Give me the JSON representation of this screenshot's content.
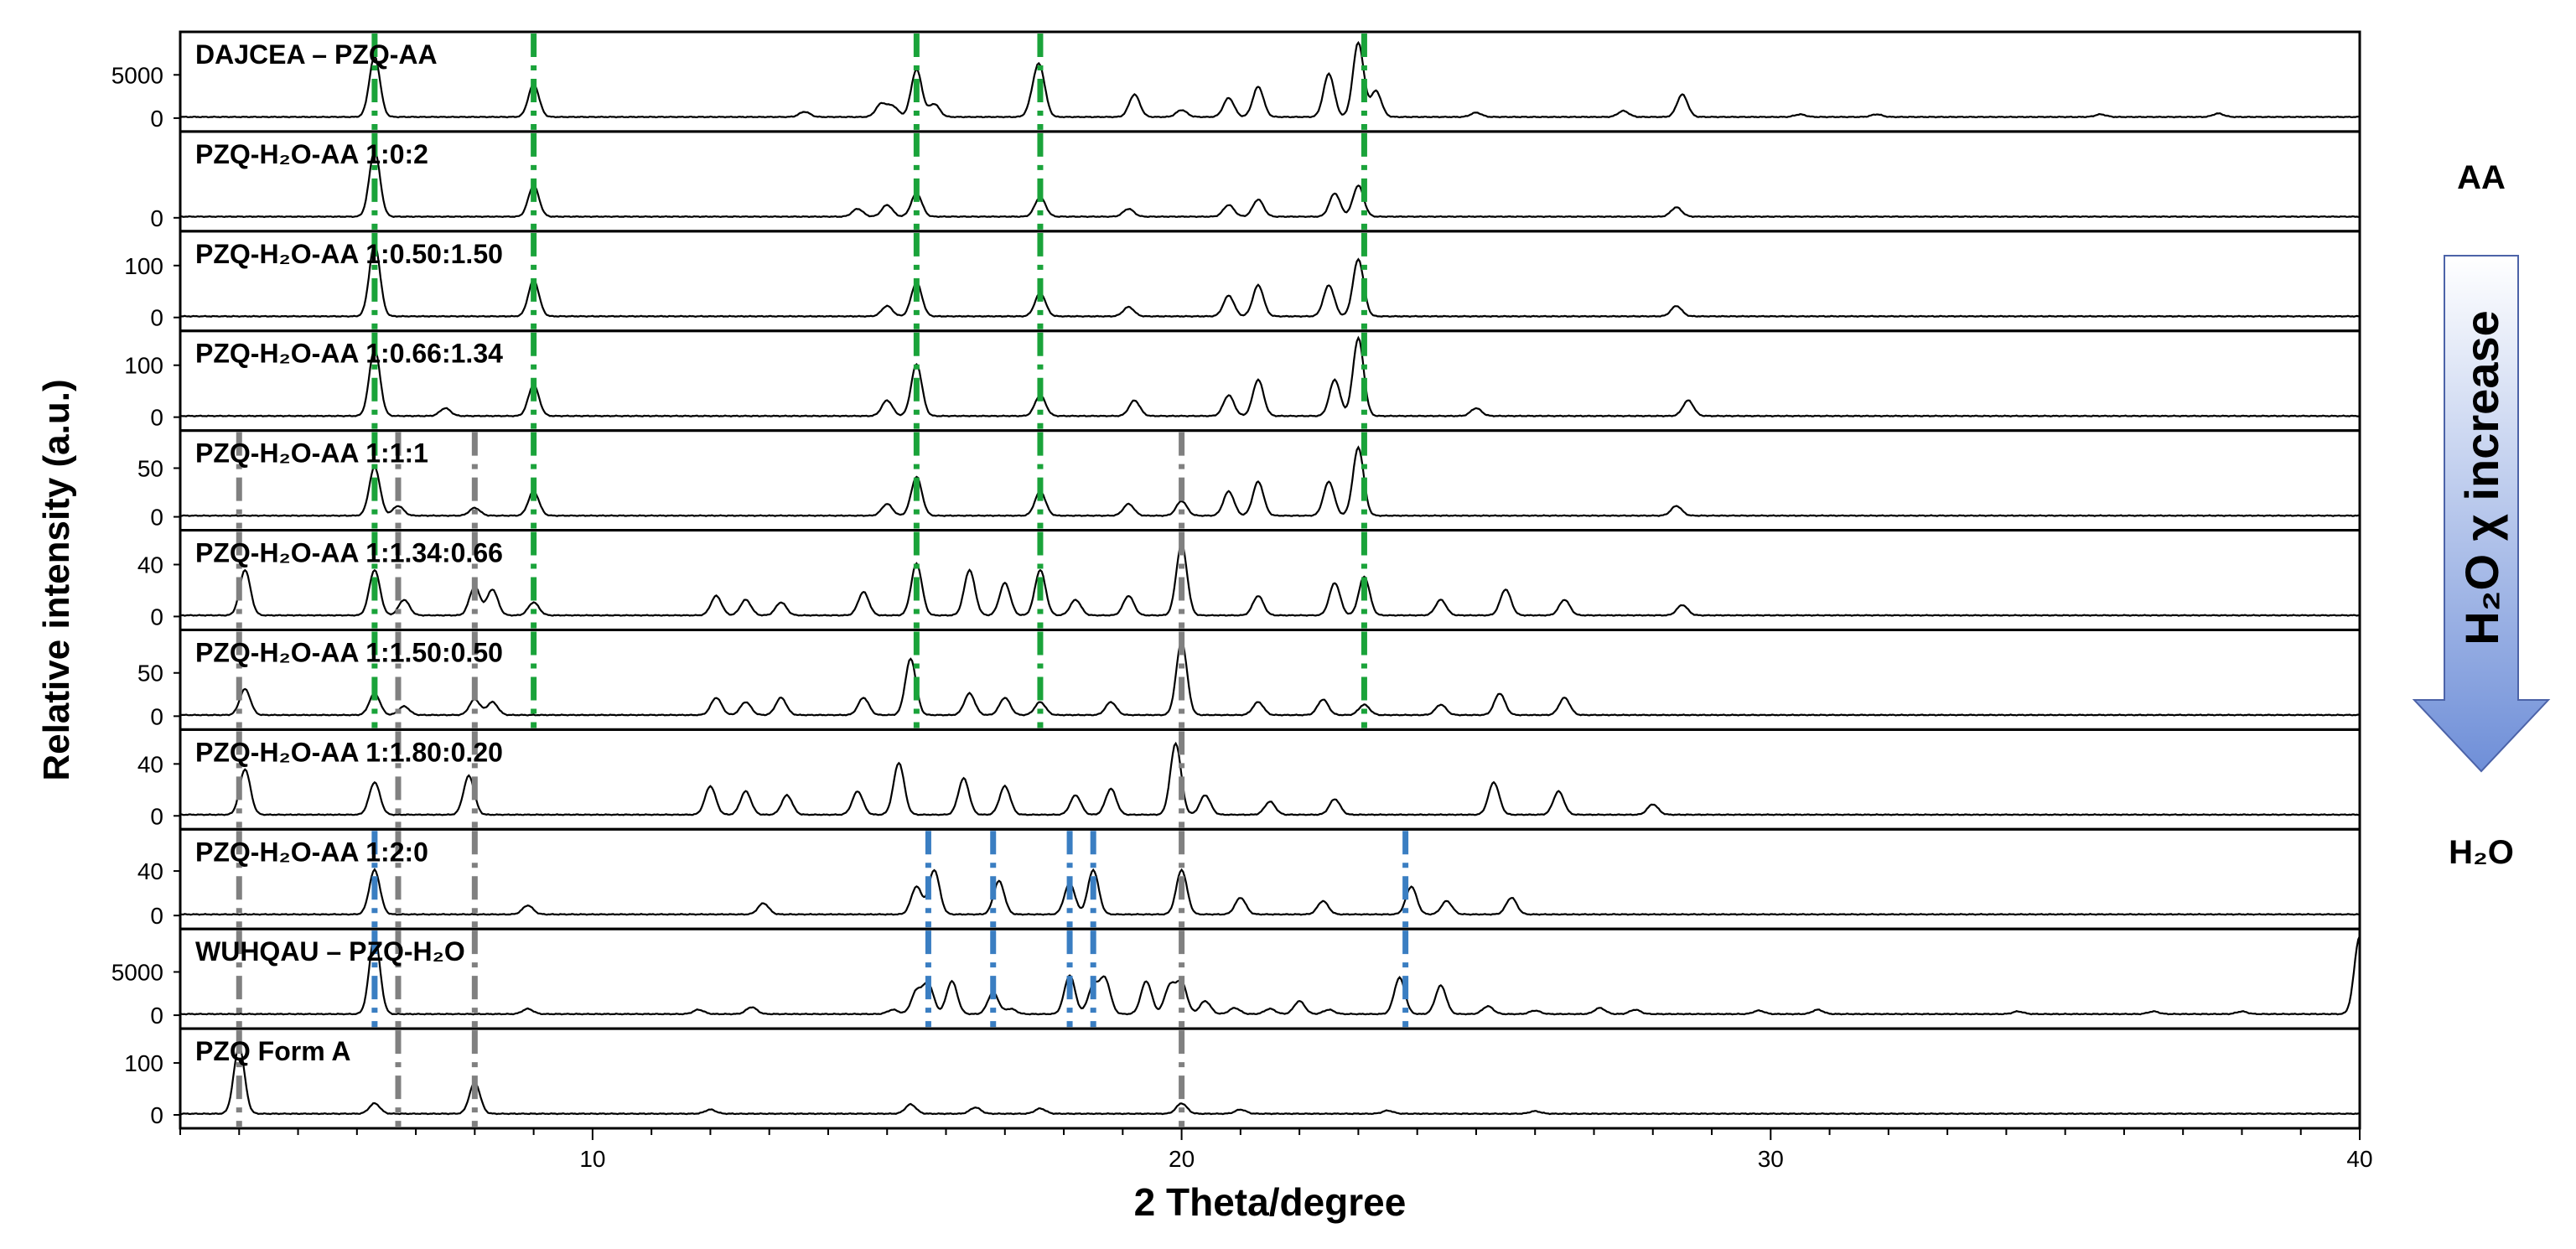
{
  "chart_data": {
    "type": "line",
    "ylabel": "Relative intensity (a.u.)",
    "xlabel": "2 Theta/degree",
    "xlim": [
      3,
      40
    ],
    "xticks": [
      10,
      20,
      30,
      40
    ],
    "side_labels": {
      "top": "AA",
      "bottom": "H₂O",
      "arrow": "H₂O χ increase"
    },
    "colors": {
      "AA_markers": "#1aa33a",
      "H2O_markers": "#3a7ec2",
      "FormA_markers": "#808080",
      "arrow_top": "#ffffff",
      "arrow_bottom": "#6f8fd8"
    },
    "marker_positions": {
      "green": [
        6.3,
        9.0,
        15.5,
        17.6,
        23.1
      ],
      "blue": [
        6.3,
        15.7,
        16.8,
        18.1,
        18.5,
        23.8
      ],
      "grey": [
        4.0,
        6.7,
        8.0,
        20.0
      ]
    },
    "panels": [
      {
        "label": "DAJCEA – PZQ-AA",
        "yticks": [
          "5000",
          "0"
        ],
        "max": 9000,
        "peaks": [
          [
            6.3,
            7000
          ],
          [
            9.0,
            3800
          ],
          [
            13.6,
            600
          ],
          [
            14.9,
            1500
          ],
          [
            15.1,
            1200
          ],
          [
            15.5,
            5500
          ],
          [
            15.8,
            1500
          ],
          [
            17.6,
            4800
          ],
          [
            17.5,
            2200
          ],
          [
            19.2,
            2600
          ],
          [
            20.0,
            800
          ],
          [
            20.8,
            2200
          ],
          [
            21.3,
            3500
          ],
          [
            22.5,
            5000
          ],
          [
            23.0,
            8600
          ],
          [
            23.3,
            3000
          ],
          [
            25.0,
            500
          ],
          [
            27.5,
            700
          ],
          [
            28.5,
            2600
          ],
          [
            30.5,
            300
          ],
          [
            31.8,
            300
          ],
          [
            35.6,
            300
          ],
          [
            37.6,
            400
          ]
        ],
        "markers": {
          "green": [
            6.3,
            9.0,
            15.5,
            17.6,
            23.1
          ]
        }
      },
      {
        "label": "PZQ-H₂O-AA 1:0:2",
        "yticks": [
          "0"
        ],
        "max": 100,
        "peaks": [
          [
            6.3,
            85
          ],
          [
            9.0,
            40
          ],
          [
            14.5,
            10
          ],
          [
            15.0,
            15
          ],
          [
            15.5,
            30
          ],
          [
            17.6,
            25
          ],
          [
            19.1,
            10
          ],
          [
            20.8,
            15
          ],
          [
            21.3,
            22
          ],
          [
            22.6,
            30
          ],
          [
            23.0,
            40
          ],
          [
            28.4,
            12
          ]
        ],
        "markers": {
          "green": [
            6.3,
            9.0,
            15.5,
            17.6,
            23.1
          ]
        }
      },
      {
        "label": "PZQ-H₂O-AA 1:0.50:1.50",
        "yticks": [
          "100",
          "0"
        ],
        "max": 150,
        "peaks": [
          [
            6.3,
            140
          ],
          [
            9.0,
            70
          ],
          [
            15.0,
            20
          ],
          [
            15.5,
            65
          ],
          [
            17.6,
            45
          ],
          [
            19.1,
            18
          ],
          [
            20.8,
            40
          ],
          [
            21.3,
            60
          ],
          [
            22.5,
            60
          ],
          [
            23.0,
            110
          ],
          [
            28.4,
            20
          ]
        ],
        "markers": {
          "green": [
            6.3,
            9.0,
            15.5,
            17.6,
            23.1
          ]
        }
      },
      {
        "label": "PZQ-H₂O-AA 1:0.66:1.34",
        "yticks": [
          "100",
          "0"
        ],
        "max": 150,
        "peaks": [
          [
            6.3,
            130
          ],
          [
            7.5,
            15
          ],
          [
            9.0,
            60
          ],
          [
            15.0,
            30
          ],
          [
            15.5,
            100
          ],
          [
            17.6,
            40
          ],
          [
            19.2,
            30
          ],
          [
            20.8,
            40
          ],
          [
            21.3,
            70
          ],
          [
            22.6,
            70
          ],
          [
            23.0,
            150
          ],
          [
            25.0,
            15
          ],
          [
            28.6,
            30
          ]
        ],
        "markers": {
          "green": [
            6.3,
            9.0,
            15.5,
            17.6,
            23.1
          ]
        }
      },
      {
        "label": "PZQ-H₂O-AA 1:1:1",
        "yticks": [
          "50",
          "0"
        ],
        "max": 80,
        "peaks": [
          [
            6.3,
            50
          ],
          [
            6.7,
            10
          ],
          [
            8.0,
            8
          ],
          [
            9.0,
            25
          ],
          [
            15.0,
            12
          ],
          [
            15.5,
            40
          ],
          [
            17.6,
            25
          ],
          [
            19.1,
            12
          ],
          [
            20.0,
            15
          ],
          [
            20.8,
            25
          ],
          [
            21.3,
            35
          ],
          [
            22.5,
            35
          ],
          [
            23.0,
            70
          ],
          [
            28.4,
            10
          ]
        ],
        "markers": {
          "green": [
            6.3,
            9.0,
            15.5,
            17.6,
            23.1
          ],
          "grey": [
            4.0,
            6.7,
            8.0,
            20.0
          ]
        }
      },
      {
        "label": "PZQ-H₂O-AA 1:1.34:0.66",
        "yticks": [
          "40",
          "0"
        ],
        "max": 60,
        "peaks": [
          [
            4.1,
            35
          ],
          [
            6.3,
            35
          ],
          [
            6.8,
            12
          ],
          [
            8.0,
            22
          ],
          [
            8.3,
            20
          ],
          [
            9.0,
            10
          ],
          [
            12.1,
            15
          ],
          [
            12.6,
            12
          ],
          [
            13.2,
            10
          ],
          [
            14.6,
            18
          ],
          [
            15.5,
            40
          ],
          [
            16.4,
            35
          ],
          [
            17.0,
            25
          ],
          [
            17.6,
            35
          ],
          [
            18.2,
            12
          ],
          [
            19.1,
            15
          ],
          [
            20.0,
            55
          ],
          [
            21.3,
            15
          ],
          [
            22.6,
            25
          ],
          [
            23.1,
            30
          ],
          [
            24.4,
            12
          ],
          [
            25.5,
            20
          ],
          [
            26.5,
            12
          ],
          [
            28.5,
            8
          ]
        ],
        "markers": {
          "green": [
            6.3,
            9.0,
            15.5,
            17.6,
            23.1
          ],
          "grey": [
            4.0,
            6.7,
            8.0,
            20.0
          ]
        }
      },
      {
        "label": "PZQ-H₂O-AA 1:1.50:0.50",
        "yticks": [
          "50",
          "0"
        ],
        "max": 90,
        "peaks": [
          [
            4.1,
            30
          ],
          [
            6.3,
            25
          ],
          [
            6.8,
            10
          ],
          [
            8.0,
            18
          ],
          [
            8.3,
            15
          ],
          [
            12.1,
            20
          ],
          [
            12.6,
            15
          ],
          [
            13.2,
            20
          ],
          [
            14.6,
            20
          ],
          [
            15.4,
            65
          ],
          [
            16.4,
            25
          ],
          [
            17.0,
            20
          ],
          [
            17.6,
            15
          ],
          [
            18.8,
            15
          ],
          [
            20.0,
            85
          ],
          [
            21.3,
            15
          ],
          [
            22.4,
            18
          ],
          [
            23.1,
            12
          ],
          [
            24.4,
            12
          ],
          [
            25.4,
            25
          ],
          [
            26.5,
            20
          ]
        ],
        "markers": {
          "green": [
            6.3,
            9.0,
            15.5,
            17.6,
            23.1
          ],
          "grey": [
            4.0,
            6.7,
            8.0,
            20.0
          ]
        }
      },
      {
        "label": "PZQ-H₂O-AA 1:1.80:0.20",
        "yticks": [
          "40",
          "0"
        ],
        "max": 60,
        "peaks": [
          [
            4.1,
            35
          ],
          [
            6.3,
            25
          ],
          [
            7.9,
            30
          ],
          [
            12.0,
            22
          ],
          [
            12.6,
            18
          ],
          [
            13.3,
            15
          ],
          [
            14.5,
            18
          ],
          [
            15.2,
            40
          ],
          [
            16.3,
            28
          ],
          [
            17.0,
            22
          ],
          [
            18.2,
            15
          ],
          [
            18.8,
            20
          ],
          [
            19.9,
            55
          ],
          [
            20.4,
            15
          ],
          [
            21.5,
            10
          ],
          [
            22.6,
            12
          ],
          [
            25.3,
            25
          ],
          [
            26.4,
            18
          ],
          [
            28.0,
            8
          ]
        ],
        "markers": {
          "grey": [
            4.0,
            6.7,
            8.0,
            20.0
          ]
        }
      },
      {
        "label": "PZQ-H₂O-AA 1:2:0",
        "yticks": [
          "40",
          "0"
        ],
        "max": 70,
        "peaks": [
          [
            6.3,
            40
          ],
          [
            8.9,
            8
          ],
          [
            12.9,
            10
          ],
          [
            15.5,
            25
          ],
          [
            15.8,
            40
          ],
          [
            16.9,
            30
          ],
          [
            18.1,
            28
          ],
          [
            18.5,
            40
          ],
          [
            20.0,
            40
          ],
          [
            21.0,
            15
          ],
          [
            22.4,
            12
          ],
          [
            23.9,
            25
          ],
          [
            24.5,
            12
          ],
          [
            25.6,
            15
          ]
        ],
        "markers": {
          "blue": [
            6.3,
            15.7,
            16.8,
            18.1,
            18.5,
            23.8
          ],
          "grey": [
            4.0,
            6.7,
            8.0,
            20.0
          ]
        }
      },
      {
        "label": "WUHQAU – PZQ-H₂O",
        "yticks": [
          "5000",
          "0"
        ],
        "max": 9000,
        "peaks": [
          [
            6.3,
            9000
          ],
          [
            8.9,
            600
          ],
          [
            11.8,
            500
          ],
          [
            12.7,
            800
          ],
          [
            15.1,
            500
          ],
          [
            15.5,
            2600
          ],
          [
            15.7,
            3400
          ],
          [
            16.1,
            3800
          ],
          [
            16.8,
            2500
          ],
          [
            17.1,
            600
          ],
          [
            18.1,
            4500
          ],
          [
            18.5,
            3200
          ],
          [
            18.7,
            4000
          ],
          [
            19.4,
            3800
          ],
          [
            19.8,
            3200
          ],
          [
            20.0,
            3600
          ],
          [
            20.4,
            1500
          ],
          [
            20.9,
            700
          ],
          [
            21.5,
            600
          ],
          [
            22.0,
            1500
          ],
          [
            22.5,
            500
          ],
          [
            23.7,
            4200
          ],
          [
            24.4,
            3300
          ],
          [
            25.2,
            900
          ],
          [
            26.0,
            400
          ],
          [
            27.1,
            700
          ],
          [
            27.7,
            500
          ],
          [
            29.8,
            400
          ],
          [
            30.8,
            500
          ],
          [
            34.2,
            300
          ],
          [
            36.5,
            300
          ],
          [
            38.0,
            300
          ],
          [
            40.0,
            9000
          ]
        ],
        "markers": {
          "blue": [
            6.3,
            15.7,
            16.8,
            18.1,
            18.5,
            23.8
          ],
          "grey": [
            4.0,
            6.7,
            8.0,
            20.0
          ]
        }
      },
      {
        "label": "PZQ Form A",
        "yticks": [
          "100",
          "0"
        ],
        "max": 150,
        "peaks": [
          [
            4.0,
            130
          ],
          [
            6.3,
            20
          ],
          [
            8.0,
            60
          ],
          [
            12.0,
            8
          ],
          [
            15.4,
            18
          ],
          [
            16.5,
            12
          ],
          [
            17.6,
            10
          ],
          [
            20.0,
            20
          ],
          [
            21.0,
            8
          ],
          [
            23.5,
            6
          ],
          [
            26.0,
            5
          ]
        ],
        "markers": {
          "grey": [
            4.0,
            6.7,
            8.0,
            20.0
          ]
        }
      }
    ]
  }
}
